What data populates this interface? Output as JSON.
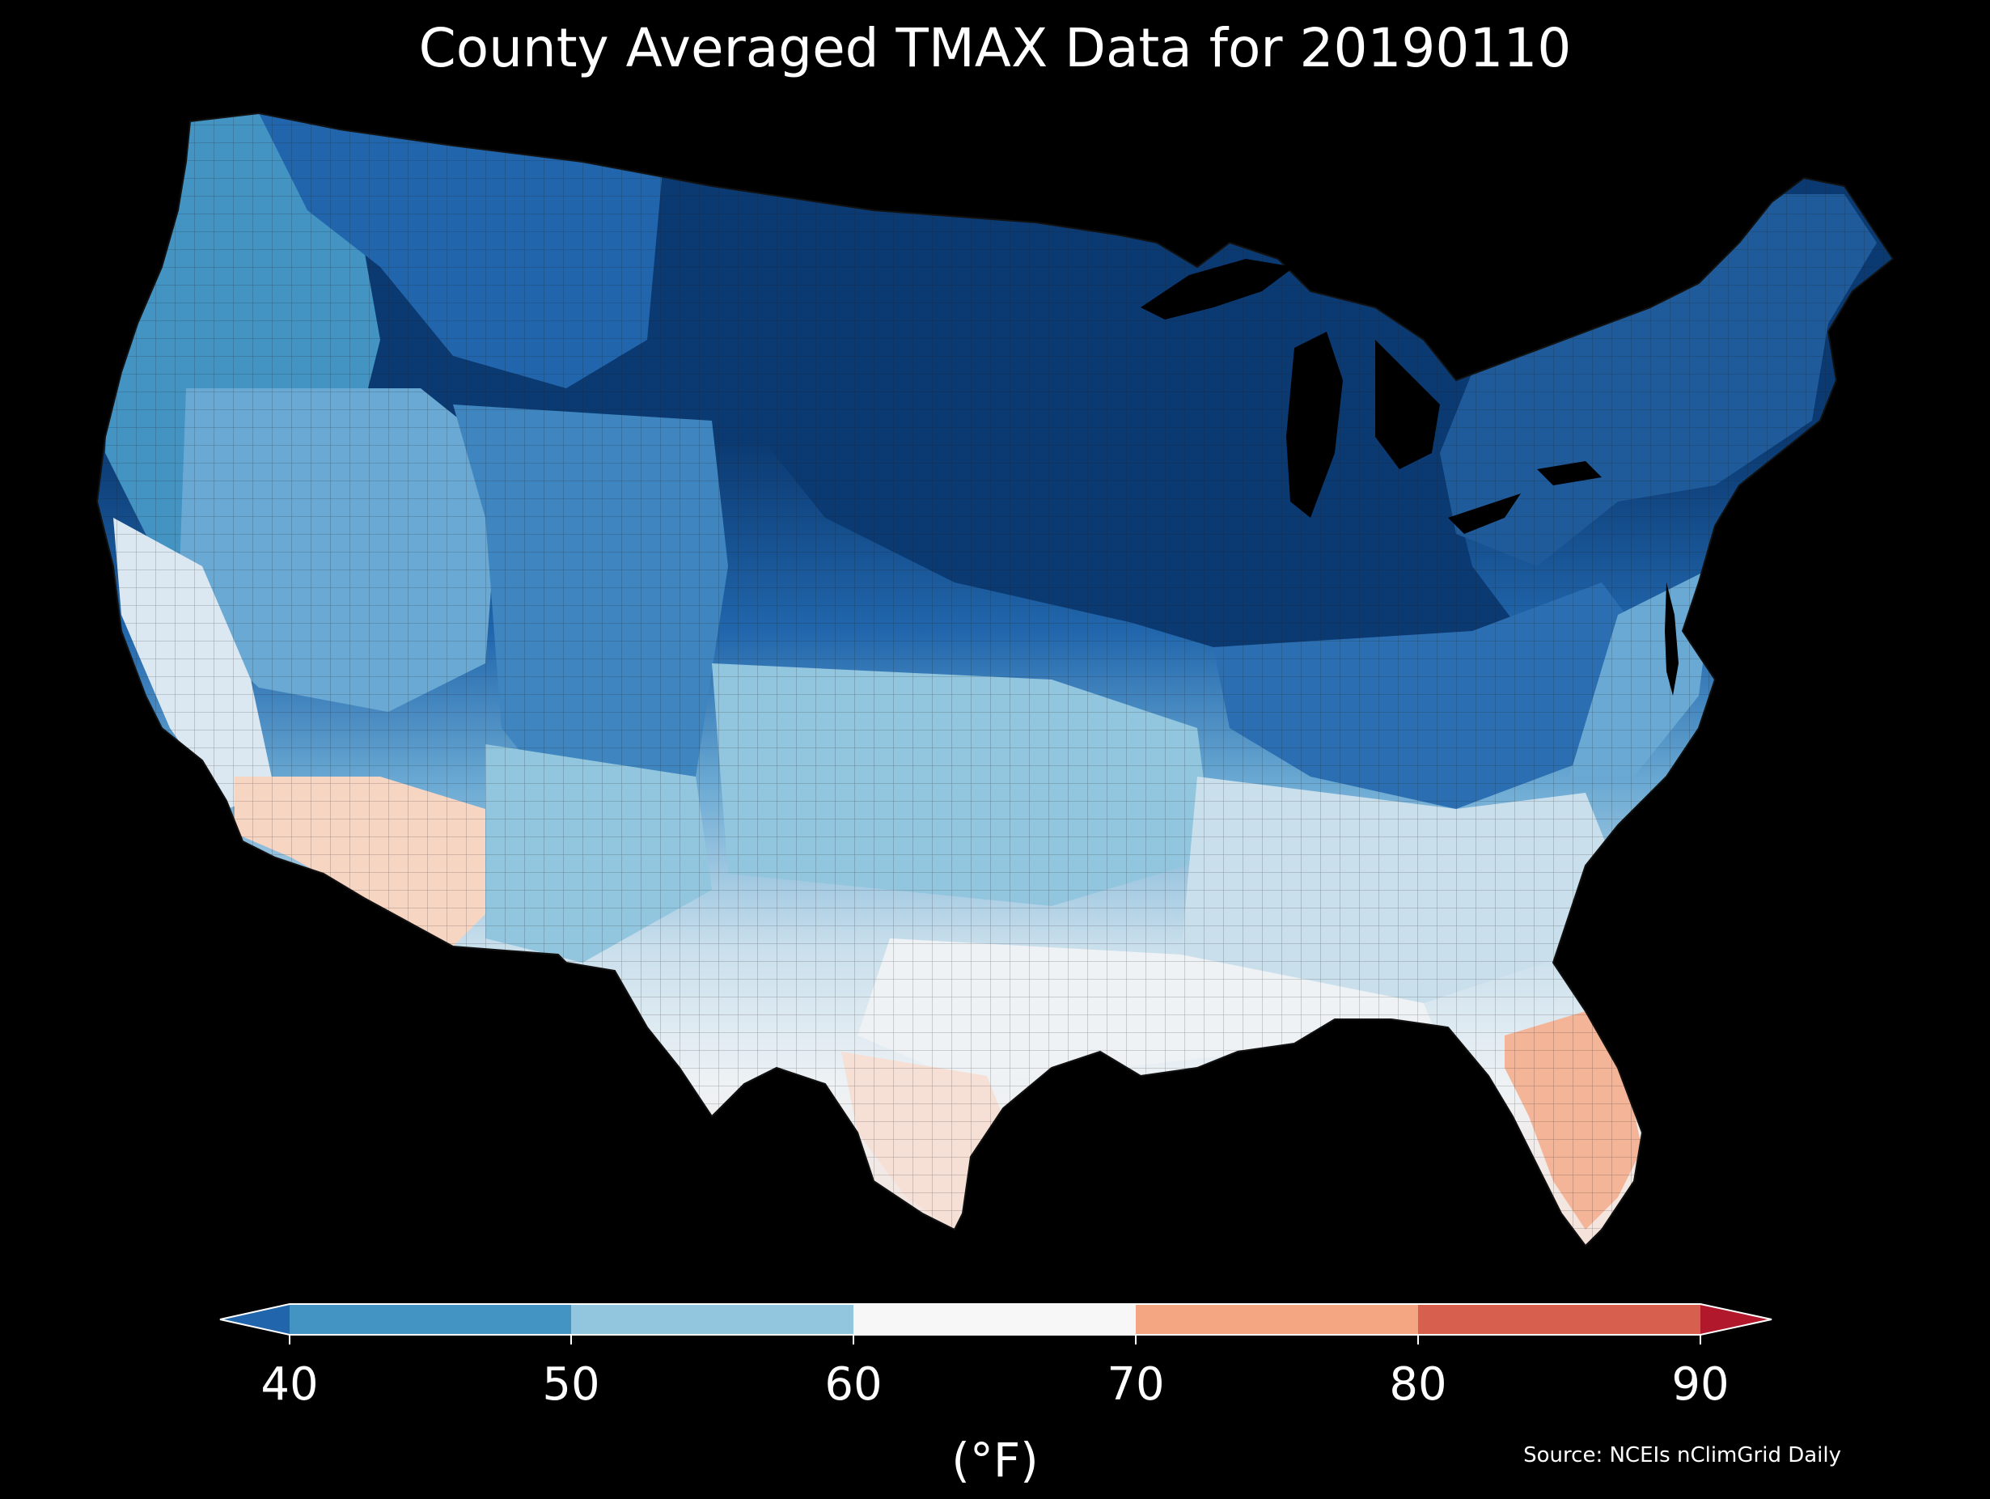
{
  "title": "County Averaged TMAX Data for 20190110",
  "colorbar": {
    "ticks": [
      "40",
      "50",
      "60",
      "70",
      "80",
      "90"
    ],
    "unit": "(°F)",
    "bins": [
      {
        "from": null,
        "to": 40,
        "color": "#2166ac"
      },
      {
        "from": 40,
        "to": 50,
        "color": "#4393c3"
      },
      {
        "from": 50,
        "to": 60,
        "color": "#92c5de"
      },
      {
        "from": 60,
        "to": 70,
        "color": "#f7f7f7"
      },
      {
        "from": 70,
        "to": 80,
        "color": "#f4a582"
      },
      {
        "from": 80,
        "to": 90,
        "color": "#d6604d"
      },
      {
        "from": 90,
        "to": null,
        "color": "#b2182b"
      }
    ]
  },
  "source": "Source: NCEIs nClimGrid Daily",
  "colors": {
    "background": "#000000",
    "cold_extreme": "#0b3a72",
    "cold": "#2166ac",
    "cool": "#4393c3",
    "mild": "#92c5de",
    "neutral": "#f7f7f7",
    "warm": "#f4a582",
    "hot": "#d6604d",
    "extreme": "#b2182b",
    "county_border": "#1a1a1a"
  },
  "regions": [
    {
      "name": "northern-plains-upper-midwest",
      "fill": "#0b3a72"
    },
    {
      "name": "northeast",
      "fill": "#1f5b9a"
    },
    {
      "name": "northern-rockies",
      "fill": "#2166ac"
    },
    {
      "name": "ohio-valley",
      "fill": "#2b6fb2"
    },
    {
      "name": "pacific-northwest",
      "fill": "#4393c3"
    },
    {
      "name": "central-rockies",
      "fill": "#3f85bf"
    },
    {
      "name": "great-basin",
      "fill": "#6aa9d3"
    },
    {
      "name": "southern-plains",
      "fill": "#92c5de"
    },
    {
      "name": "southeast",
      "fill": "#c9dfec"
    },
    {
      "name": "gulf-coast",
      "fill": "#eef2f5"
    },
    {
      "name": "south-texas",
      "fill": "#f6e0d6"
    },
    {
      "name": "desert-southwest",
      "fill": "#f7d5c3"
    },
    {
      "name": "florida-peninsula",
      "fill": "#f4b497"
    }
  ]
}
